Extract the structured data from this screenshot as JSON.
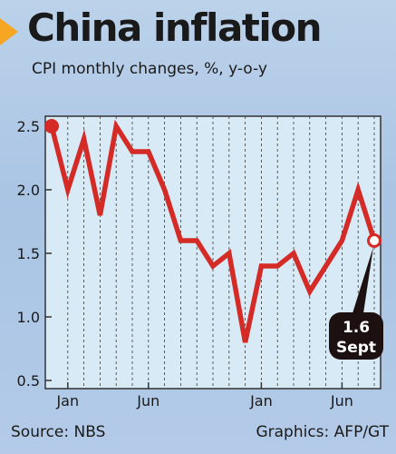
{
  "title": "China inflation",
  "subtitle": "CPI monthly changes, %, y-o-y",
  "source": "Source: NBS",
  "credit": "Graphics: AFP/GT",
  "colors": {
    "line": "#d42b27",
    "accent": "#f5a623",
    "callout": "#1c1110",
    "background": "#b3cbe8"
  },
  "chart_data": {
    "type": "line",
    "title": "China inflation",
    "subtitle": "CPI monthly changes, %, y-o-y",
    "xlabel": "",
    "ylabel": "",
    "ylim": [
      0.5,
      2.5
    ],
    "yticks": [
      "0.5",
      "1.0",
      "1.5",
      "2.0",
      "2.5"
    ],
    "xticks": [
      {
        "label": "Jan",
        "index": 1
      },
      {
        "label": "Jun",
        "index": 6
      },
      {
        "label": "Jan",
        "index": 13
      },
      {
        "label": "Jun",
        "index": 18
      }
    ],
    "grid": "vertical dashed lines at each month",
    "values": [
      2.5,
      2.0,
      2.4,
      1.8,
      2.5,
      2.3,
      2.3,
      2.0,
      1.6,
      1.6,
      1.4,
      1.5,
      0.8,
      1.4,
      1.4,
      1.5,
      1.2,
      1.4,
      1.6,
      2.0,
      1.6
    ],
    "annotation": {
      "value": "1.6",
      "label": "Sept",
      "index": 20
    }
  }
}
